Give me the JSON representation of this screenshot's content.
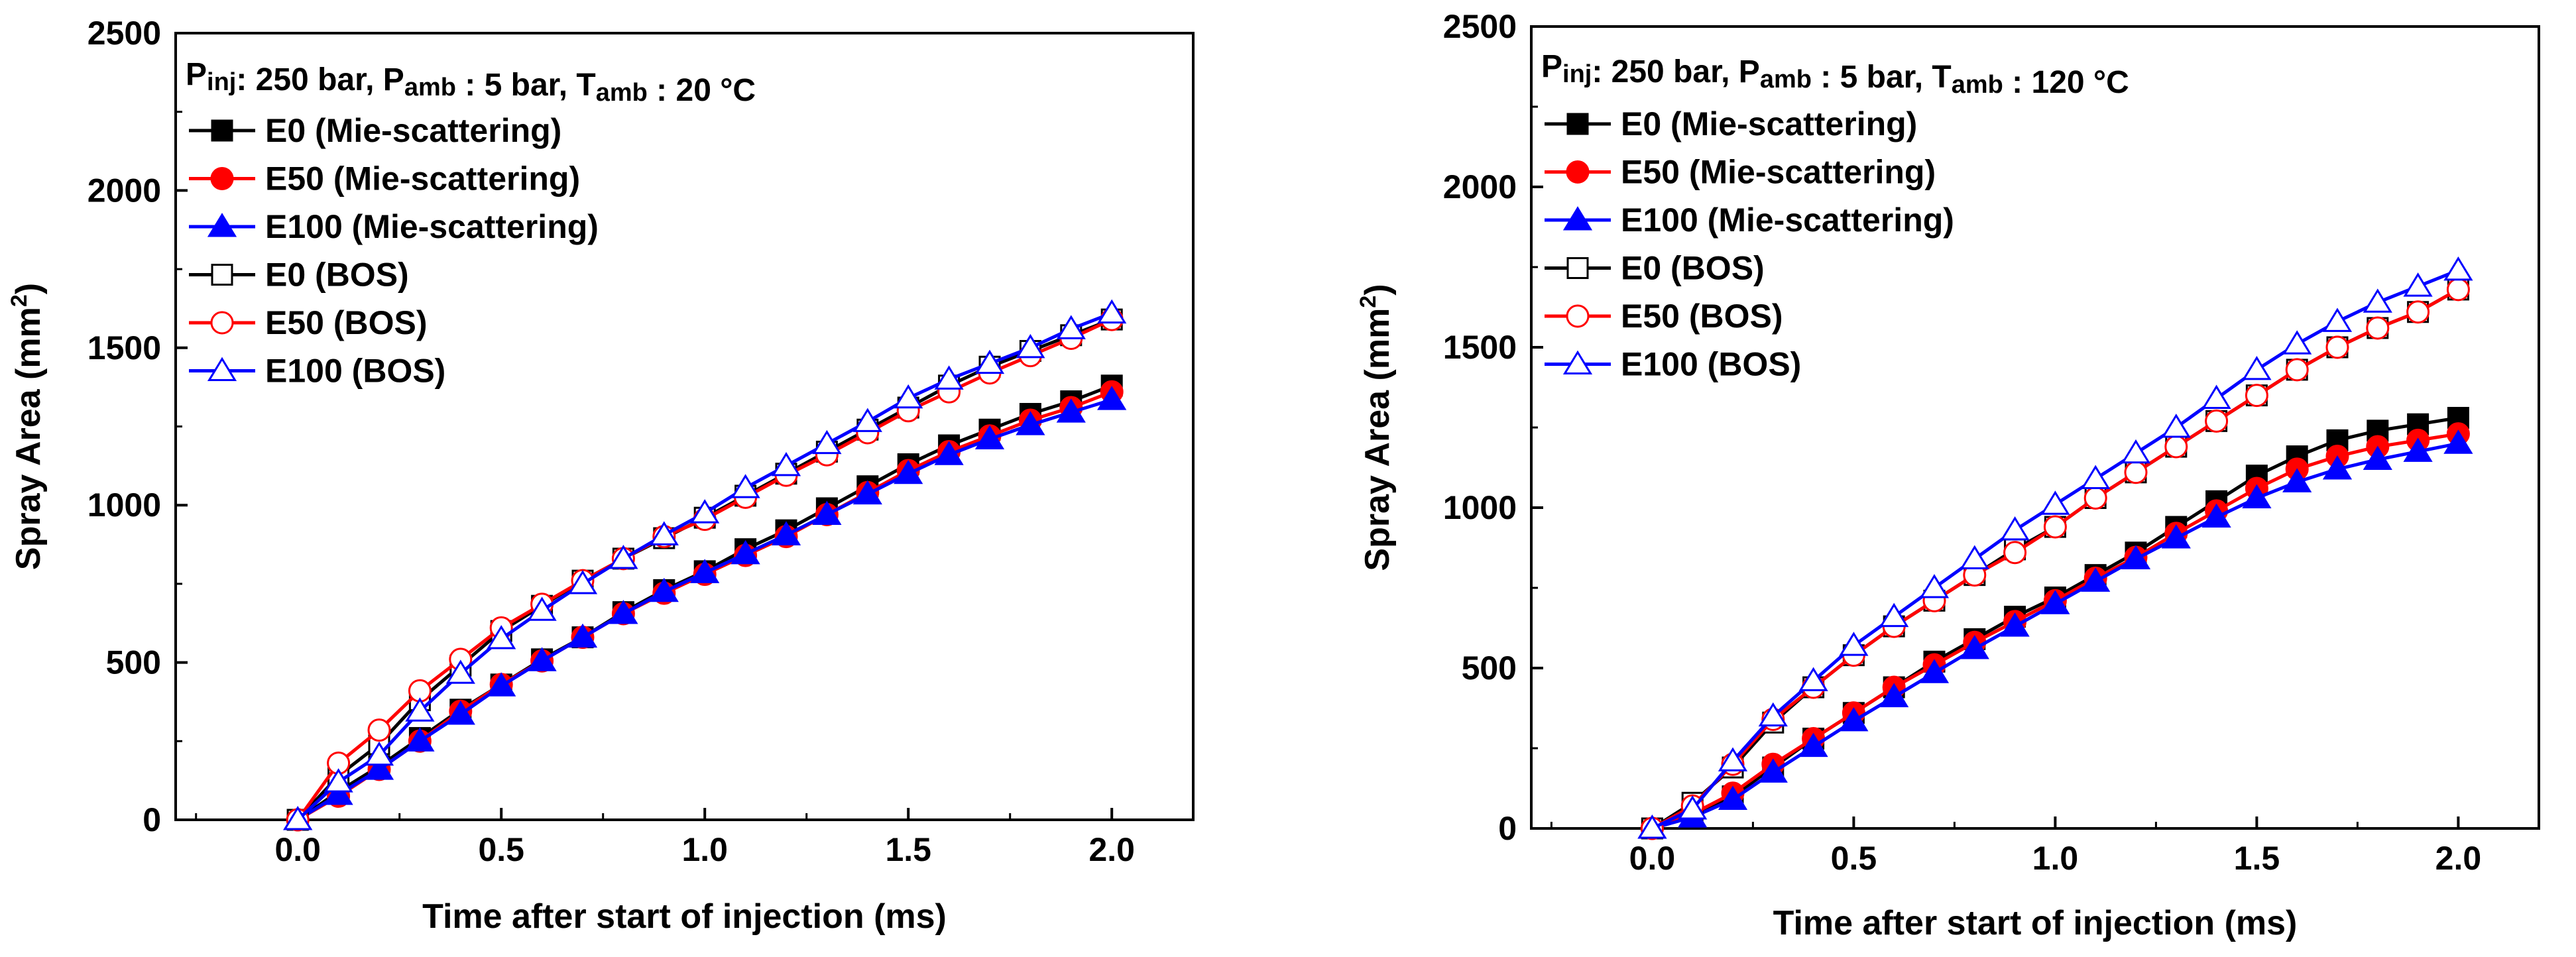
{
  "chart_data": [
    {
      "type": "line",
      "title": "Pinj: 250 bar, Pamb : 5 bar, Tamb : 20 °C",
      "annotation": {
        "parts": [
          {
            "text": "P",
            "sub": "inj"
          },
          {
            "text": ": 250 bar, P",
            "sub": "amb"
          },
          {
            "text": " : 5 bar, T",
            "sub": "amb"
          },
          {
            "text": " : 20 °C",
            "sub": ""
          }
        ]
      },
      "xlabel": "Time after start of injection (ms)",
      "ylabel": "Spray Area (mm²)",
      "xlim": [
        -0.3,
        2.2
      ],
      "ylim": [
        0,
        2500
      ],
      "xticks": [
        0.0,
        0.5,
        1.0,
        1.5,
        2.0
      ],
      "xtick_labels": [
        "0.0",
        "0.5",
        "1.0",
        "1.5",
        "2.0"
      ],
      "yticks": [
        0,
        500,
        1000,
        1500,
        2000,
        2500
      ],
      "ytick_labels": [
        "0",
        "500",
        "1000",
        "1500",
        "2000",
        "2500"
      ],
      "legend_position": "top-left",
      "x": [
        0.0,
        0.1,
        0.2,
        0.3,
        0.4,
        0.5,
        0.6,
        0.7,
        0.8,
        0.9,
        1.0,
        1.1,
        1.2,
        1.3,
        1.4,
        1.5,
        1.6,
        1.7,
        1.8,
        1.9,
        2.0
      ],
      "series": [
        {
          "name": "E0 (Mie-scattering)",
          "color": "#000000",
          "marker": "square",
          "filled": true,
          "values": [
            0,
            90,
            170,
            260,
            350,
            430,
            510,
            580,
            660,
            730,
            790,
            860,
            920,
            990,
            1060,
            1130,
            1190,
            1240,
            1290,
            1330,
            1380
          ]
        },
        {
          "name": "E50 (Mie-scattering)",
          "color": "#ff0000",
          "marker": "circle",
          "filled": true,
          "values": [
            0,
            75,
            160,
            250,
            345,
            430,
            505,
            580,
            655,
            720,
            780,
            840,
            900,
            970,
            1040,
            1110,
            1170,
            1220,
            1270,
            1310,
            1360
          ]
        },
        {
          "name": "E100 (Mie-scattering)",
          "color": "#0000ff",
          "marker": "triangle",
          "filled": true,
          "values": [
            0,
            80,
            160,
            250,
            335,
            425,
            505,
            580,
            655,
            725,
            785,
            845,
            905,
            970,
            1035,
            1100,
            1160,
            1210,
            1255,
            1295,
            1335
          ]
        },
        {
          "name": "E0 (BOS)",
          "color": "#000000",
          "marker": "square",
          "filled": false,
          "values": [
            0,
            140,
            240,
            380,
            490,
            600,
            680,
            760,
            830,
            895,
            960,
            1030,
            1100,
            1170,
            1240,
            1310,
            1380,
            1440,
            1490,
            1540,
            1590
          ]
        },
        {
          "name": "E50 (BOS)",
          "color": "#ff0000",
          "marker": "circle",
          "filled": false,
          "values": [
            0,
            180,
            285,
            410,
            510,
            610,
            685,
            760,
            830,
            900,
            955,
            1025,
            1095,
            1160,
            1230,
            1300,
            1360,
            1420,
            1475,
            1530,
            1590
          ]
        },
        {
          "name": "E100 (BOS)",
          "color": "#0000ff",
          "marker": "triangle",
          "filled": false,
          "values": [
            0,
            120,
            205,
            345,
            465,
            575,
            665,
            750,
            830,
            905,
            975,
            1055,
            1125,
            1195,
            1265,
            1340,
            1400,
            1450,
            1500,
            1560,
            1610
          ]
        }
      ]
    },
    {
      "type": "line",
      "title": "Pinj: 250 bar, Pamb : 5 bar, Tamb : 120 °C",
      "annotation": {
        "parts": [
          {
            "text": "P",
            "sub": "inj"
          },
          {
            "text": ": 250 bar, P",
            "sub": "amb"
          },
          {
            "text": " : 5 bar, T",
            "sub": "amb"
          },
          {
            "text": " : 120 °C",
            "sub": ""
          }
        ]
      },
      "xlabel": "Time after start of injection (ms)",
      "ylabel": "Spray Area (mm²)",
      "xlim": [
        -0.3,
        2.2
      ],
      "ylim": [
        0,
        2500
      ],
      "xticks": [
        0.0,
        0.5,
        1.0,
        1.5,
        2.0
      ],
      "xtick_labels": [
        "0.0",
        "0.5",
        "1.0",
        "1.5",
        "2.0"
      ],
      "yticks": [
        0,
        500,
        1000,
        1500,
        2000,
        2500
      ],
      "ytick_labels": [
        "0",
        "500",
        "1000",
        "1500",
        "2000",
        "2500"
      ],
      "legend_position": "top-left",
      "x": [
        0.0,
        0.1,
        0.2,
        0.3,
        0.4,
        0.5,
        0.6,
        0.7,
        0.8,
        0.9,
        1.0,
        1.1,
        1.2,
        1.3,
        1.4,
        1.5,
        1.6,
        1.7,
        1.8,
        1.9,
        2.0
      ],
      "series": [
        {
          "name": "E0 (Mie-scattering)",
          "color": "#000000",
          "marker": "square",
          "filled": true,
          "values": [
            0,
            40,
            100,
            190,
            280,
            360,
            440,
            520,
            590,
            660,
            720,
            790,
            860,
            940,
            1020,
            1100,
            1160,
            1210,
            1240,
            1260,
            1280
          ]
        },
        {
          "name": "E50 (Mie-scattering)",
          "color": "#ff0000",
          "marker": "circle",
          "filled": true,
          "values": [
            0,
            45,
            110,
            200,
            280,
            360,
            440,
            510,
            580,
            645,
            710,
            780,
            845,
            920,
            990,
            1060,
            1120,
            1160,
            1190,
            1210,
            1230
          ]
        },
        {
          "name": "E100 (Mie-scattering)",
          "color": "#0000ff",
          "marker": "triangle",
          "filled": true,
          "values": [
            0,
            35,
            90,
            175,
            255,
            335,
            410,
            485,
            560,
            630,
            700,
            770,
            840,
            905,
            970,
            1030,
            1080,
            1120,
            1150,
            1175,
            1200
          ]
        },
        {
          "name": "E0 (BOS)",
          "color": "#000000",
          "marker": "square",
          "filled": false,
          "values": [
            0,
            80,
            190,
            330,
            440,
            540,
            630,
            710,
            790,
            870,
            940,
            1030,
            1110,
            1190,
            1270,
            1350,
            1430,
            1500,
            1560,
            1610,
            1680
          ]
        },
        {
          "name": "E50 (BOS)",
          "color": "#ff0000",
          "marker": "circle",
          "filled": false,
          "values": [
            0,
            70,
            200,
            340,
            440,
            540,
            630,
            710,
            790,
            860,
            940,
            1030,
            1110,
            1190,
            1270,
            1350,
            1430,
            1500,
            1560,
            1610,
            1680
          ]
        },
        {
          "name": "E100 (BOS)",
          "color": "#0000ff",
          "marker": "triangle",
          "filled": false,
          "values": [
            0,
            60,
            210,
            350,
            460,
            570,
            660,
            750,
            840,
            930,
            1010,
            1090,
            1170,
            1250,
            1340,
            1430,
            1510,
            1580,
            1640,
            1690,
            1740
          ]
        }
      ]
    }
  ]
}
